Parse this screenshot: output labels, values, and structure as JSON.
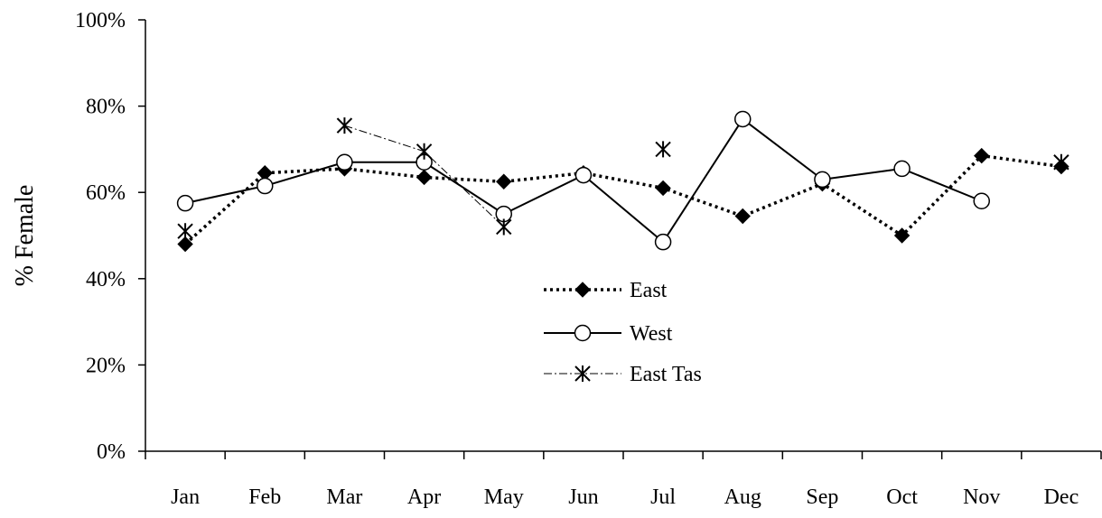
{
  "colors": {
    "ink": "#000000",
    "background": "#ffffff",
    "marker_fill_open": "#ffffff"
  },
  "chart_data": {
    "type": "line",
    "ylabel": "% Female",
    "xlabel": "",
    "ylim": [
      0,
      100
    ],
    "yticks": [
      0,
      20,
      40,
      60,
      80,
      100
    ],
    "ytick_labels": [
      "0%",
      "20%",
      "40%",
      "60%",
      "80%",
      "100%"
    ],
    "categories": [
      "Jan",
      "Feb",
      "Mar",
      "Apr",
      "May",
      "Jun",
      "Jul",
      "Aug",
      "Sep",
      "Oct",
      "Nov",
      "Dec"
    ],
    "grid": false,
    "legend_position": "center",
    "series": [
      {
        "name": "East",
        "line_style": "dotted-thick",
        "marker": "filled-diamond",
        "values": [
          48,
          64.5,
          65.5,
          63.5,
          62.5,
          64.5,
          61,
          54.5,
          62,
          50,
          68.5,
          66
        ]
      },
      {
        "name": "West",
        "line_style": "solid",
        "marker": "open-circle",
        "values": [
          57.5,
          61.5,
          67,
          67,
          55,
          64,
          48.5,
          77,
          63,
          65.5,
          58,
          null
        ]
      },
      {
        "name": "East Tas",
        "line_style": "dash-dot-thin",
        "marker": "asterisk",
        "values": [
          51,
          null,
          75.5,
          69.5,
          52,
          null,
          70,
          null,
          null,
          null,
          null,
          67
        ]
      }
    ]
  }
}
